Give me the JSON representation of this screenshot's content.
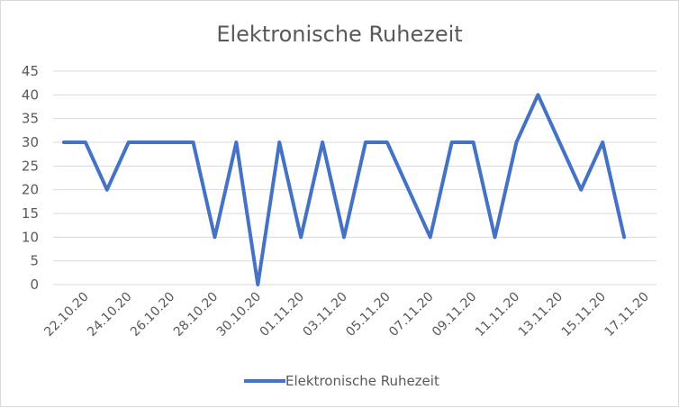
{
  "chart_data": {
    "type": "line",
    "title": "Elektronische Ruhezeit",
    "xlabel": "",
    "ylabel": "",
    "ylim": [
      0,
      45
    ],
    "yticks": [
      0,
      5,
      10,
      15,
      20,
      25,
      30,
      35,
      40,
      45
    ],
    "grid": true,
    "legend_position": "bottom",
    "color": "#4472c4",
    "x": [
      "21.10.20",
      "22.10.20",
      "23.10.20",
      "24.10.20",
      "25.10.20",
      "26.10.20",
      "27.10.20",
      "28.10.20",
      "29.10.20",
      "30.10.20",
      "31.10.20",
      "01.11.20",
      "02.11.20",
      "03.11.20",
      "04.11.20",
      "05.11.20",
      "06.11.20",
      "07.11.20",
      "08.11.20",
      "09.11.20",
      "10.11.20",
      "11.11.20",
      "12.11.20",
      "13.11.20",
      "14.11.20",
      "15.11.20",
      "16.11.20",
      "17.11.20"
    ],
    "xtick_labels": [
      "22.10.20",
      "24.10.20",
      "26.10.20",
      "28.10.20",
      "30.10.20",
      "01.11.20",
      "03.11.20",
      "05.11.20",
      "07.11.20",
      "09.11.20",
      "11.11.20",
      "13.11.20",
      "15.11.20",
      "17.11.20"
    ],
    "series": [
      {
        "name": "Elektronische Ruhezeit",
        "values": [
          30,
          30,
          20,
          30,
          30,
          30,
          30,
          10,
          30,
          0,
          30,
          10,
          30,
          10,
          30,
          30,
          20,
          10,
          30,
          30,
          10,
          30,
          40,
          30,
          20,
          30,
          10,
          null
        ]
      }
    ]
  }
}
